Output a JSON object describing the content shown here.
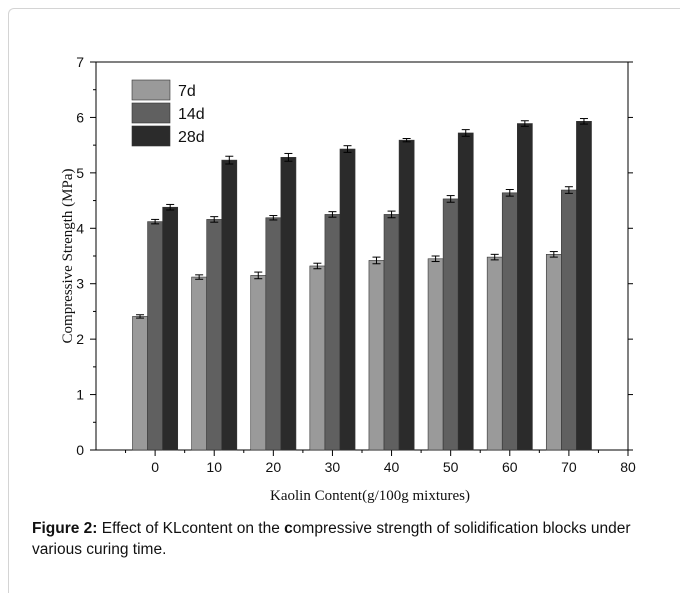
{
  "chart_data": {
    "type": "bar",
    "title": "",
    "xlabel": "Kaolin Content(g/100g mixtures)",
    "ylabel": "Compressive Strength (MPa)",
    "x": [
      0,
      10,
      20,
      30,
      40,
      50,
      60,
      70
    ],
    "xlim": [
      -10,
      80
    ],
    "ylim": [
      0,
      7
    ],
    "x_ticks": [
      0,
      10,
      20,
      30,
      40,
      50,
      60,
      70,
      80
    ],
    "y_ticks": [
      0,
      1,
      2,
      3,
      4,
      5,
      6,
      7
    ],
    "legend_position": "top-left",
    "series": [
      {
        "name": "7d",
        "color": "#9a9a9a",
        "values": [
          2.41,
          3.12,
          3.15,
          3.32,
          3.42,
          3.45,
          3.48,
          3.53
        ],
        "errors": [
          0.03,
          0.04,
          0.06,
          0.05,
          0.06,
          0.05,
          0.05,
          0.05
        ]
      },
      {
        "name": "14d",
        "color": "#606060",
        "values": [
          4.12,
          4.16,
          4.19,
          4.25,
          4.25,
          4.53,
          4.64,
          4.69
        ],
        "errors": [
          0.04,
          0.05,
          0.04,
          0.05,
          0.06,
          0.06,
          0.06,
          0.06
        ]
      },
      {
        "name": "28d",
        "color": "#2b2b2b",
        "values": [
          4.38,
          5.23,
          5.28,
          5.43,
          5.59,
          5.72,
          5.89,
          5.93
        ],
        "errors": [
          0.05,
          0.07,
          0.07,
          0.06,
          0.03,
          0.06,
          0.05,
          0.05
        ]
      }
    ]
  },
  "caption": {
    "label": "Figure 2:",
    "text_a": " Effect of KLcontent on the ",
    "bold_c": "c",
    "text_b": "ompressive strength of solidification blocks under various curing time."
  }
}
